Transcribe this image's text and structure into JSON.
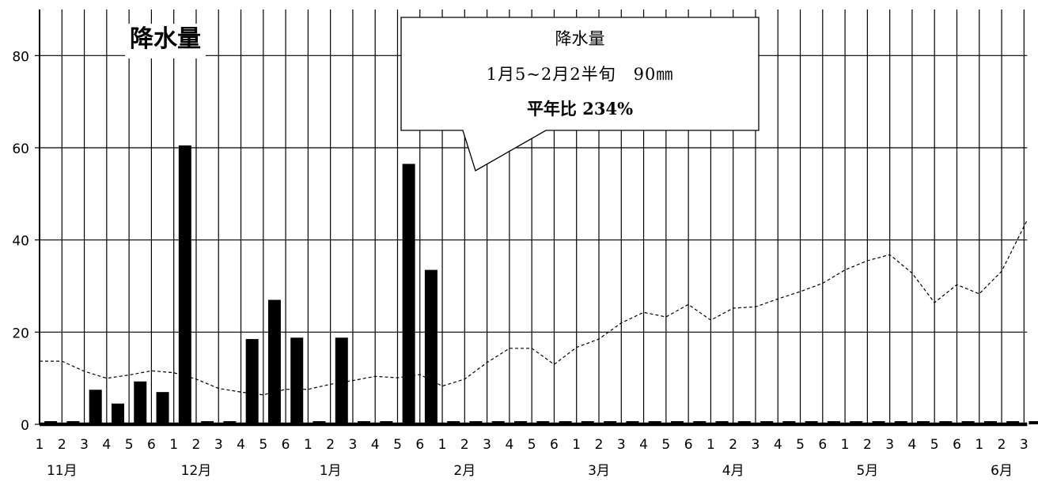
{
  "chart_data": {
    "type": "bar",
    "title": "降水量",
    "ylim": [
      0,
      90
    ],
    "y_ticks": [
      "0",
      "20",
      "40",
      "60",
      "80"
    ],
    "categories": [
      "1",
      "2",
      "3",
      "4",
      "5",
      "6",
      "1",
      "2",
      "3",
      "4",
      "5",
      "6",
      "1",
      "2",
      "3",
      "4",
      "5",
      "6",
      "1",
      "2",
      "3",
      "4",
      "5",
      "6",
      "1",
      "2",
      "3",
      "4",
      "5",
      "6",
      "1",
      "2",
      "3",
      "4",
      "5",
      "6",
      "1",
      "2",
      "3",
      "4",
      "5",
      "6",
      "1",
      "2",
      "3"
    ],
    "month_labels": [
      {
        "label": "11月",
        "start_index": 0
      },
      {
        "label": "12月",
        "start_index": 6
      },
      {
        "label": "1月",
        "start_index": 12
      },
      {
        "label": "2月",
        "start_index": 18
      },
      {
        "label": "3月",
        "start_index": 24
      },
      {
        "label": "4月",
        "start_index": 30
      },
      {
        "label": "5月",
        "start_index": 36
      },
      {
        "label": "6月",
        "start_index": 42
      }
    ],
    "series": [
      {
        "style": "bar",
        "values": [
          0,
          0,
          7.5,
          4.5,
          9.3,
          7,
          60.5,
          0,
          0,
          18.5,
          27,
          18.8,
          0,
          18.8,
          0,
          0,
          56.5,
          33.5,
          0,
          0,
          0,
          0,
          0,
          0,
          0,
          0,
          0,
          0,
          0,
          0,
          0,
          0,
          0,
          0,
          0,
          0,
          0,
          0,
          0,
          0,
          0,
          0,
          0,
          0,
          0
        ]
      },
      {
        "style": "dashed-line",
        "values": [
          13.7,
          13.7,
          11.5,
          10.0,
          10.7,
          11.6,
          11.2,
          9.8,
          7.8,
          7.0,
          6.4,
          7.6,
          7.6,
          8.7,
          9.5,
          10.4,
          10.1,
          10.8,
          8.3,
          9.8,
          13.4,
          16.5,
          16.5,
          13.0,
          16.7,
          18.5,
          22,
          24.3,
          23.3,
          26,
          22.6,
          25.2,
          25.5,
          27.2,
          28.8,
          30.6,
          33.5,
          35.5,
          36.8,
          32.8,
          26.4,
          30.3,
          28.3,
          33.2,
          44.3
        ]
      }
    ],
    "grid": true,
    "annotation": {
      "title": "降水量",
      "period": "1月5~2月2半旬　90㎜",
      "ratio": "平年比 234%"
    }
  }
}
